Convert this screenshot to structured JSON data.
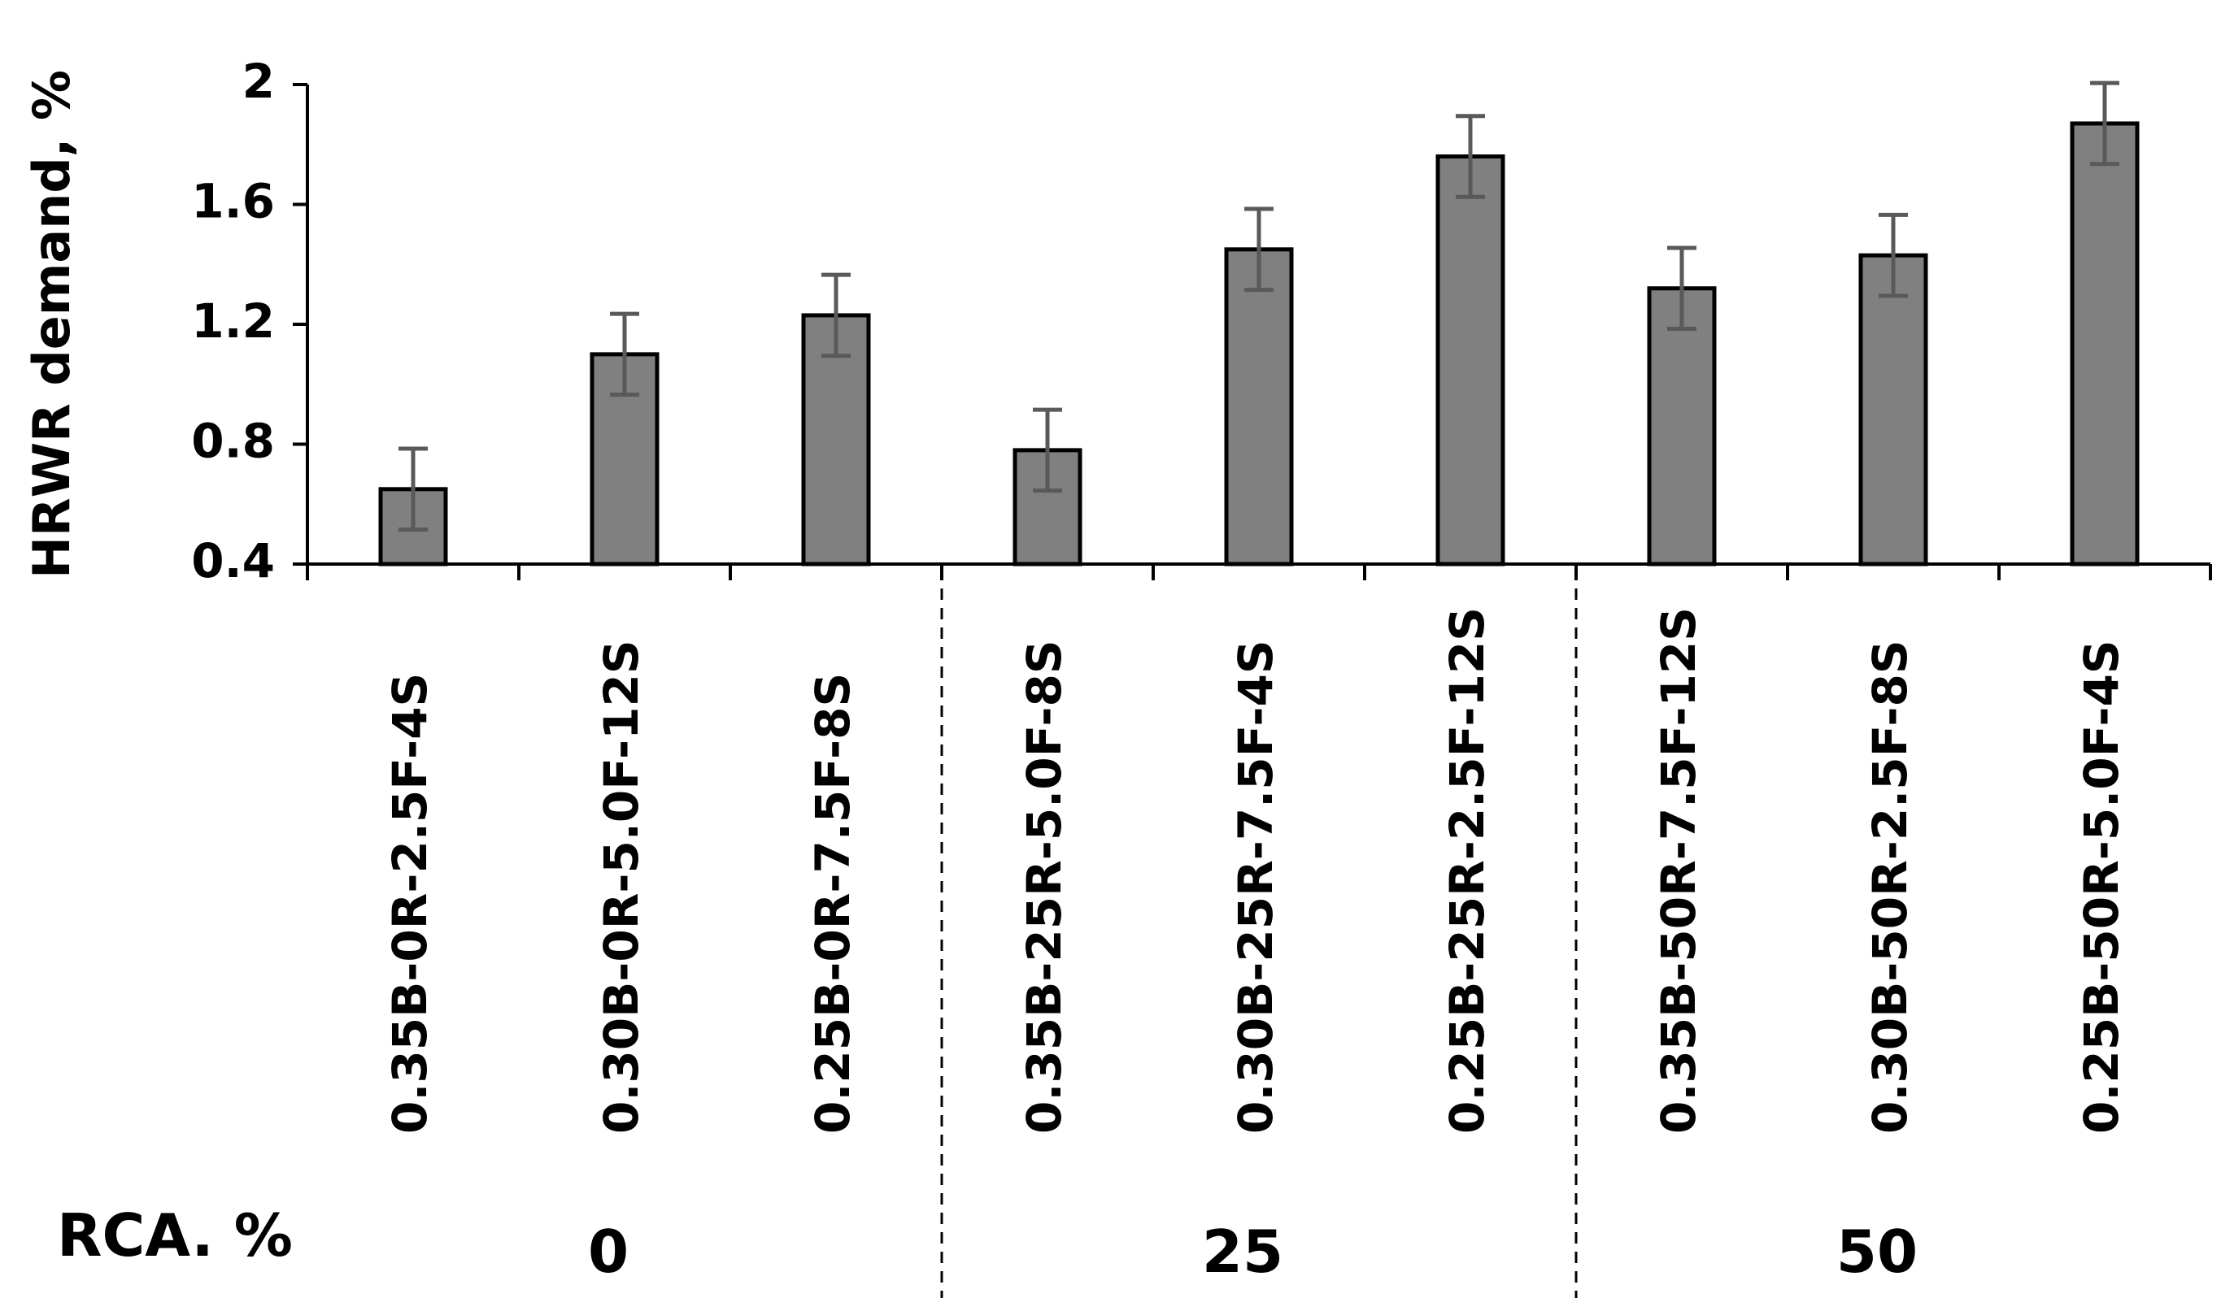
{
  "chart_data": {
    "type": "bar",
    "title": "",
    "xlabel": "",
    "ylabel": "HRWR demand, %",
    "ylim": [
      0.4,
      2.0
    ],
    "yticks": [
      "0.4",
      "0.8",
      "1.2",
      "1.6",
      "2"
    ],
    "grid": false,
    "legend": "none",
    "categories": [
      "0.35B-0R-2.5F-4S",
      "0.30B-0R-5.0F-12S",
      "0.25B-0R-7.5F-8S",
      "0.35B-25R-5.0F-8S",
      "0.30B-25R-7.5F-4S",
      "0.25B-25R-2.5F-12S",
      "0.35B-50R-7.5F-12S",
      "0.30B-50R-2.5F-8S",
      "0.25B-50R-5.0F-4S"
    ],
    "values": [
      0.65,
      1.1,
      1.23,
      0.78,
      1.45,
      1.76,
      1.32,
      1.43,
      1.87
    ],
    "error": [
      0.135,
      0.135,
      0.135,
      0.135,
      0.135,
      0.135,
      0.135,
      0.135,
      0.135
    ],
    "group_axis_title": "RCA. %",
    "groups": [
      {
        "label": "0",
        "count": 3
      },
      {
        "label": "25",
        "count": 3
      },
      {
        "label": "50",
        "count": 3
      }
    ],
    "colors": {
      "bar_fill": "#808080",
      "bar_stroke": "#000000",
      "error_bar": "#595959",
      "axis": "#000000"
    }
  }
}
